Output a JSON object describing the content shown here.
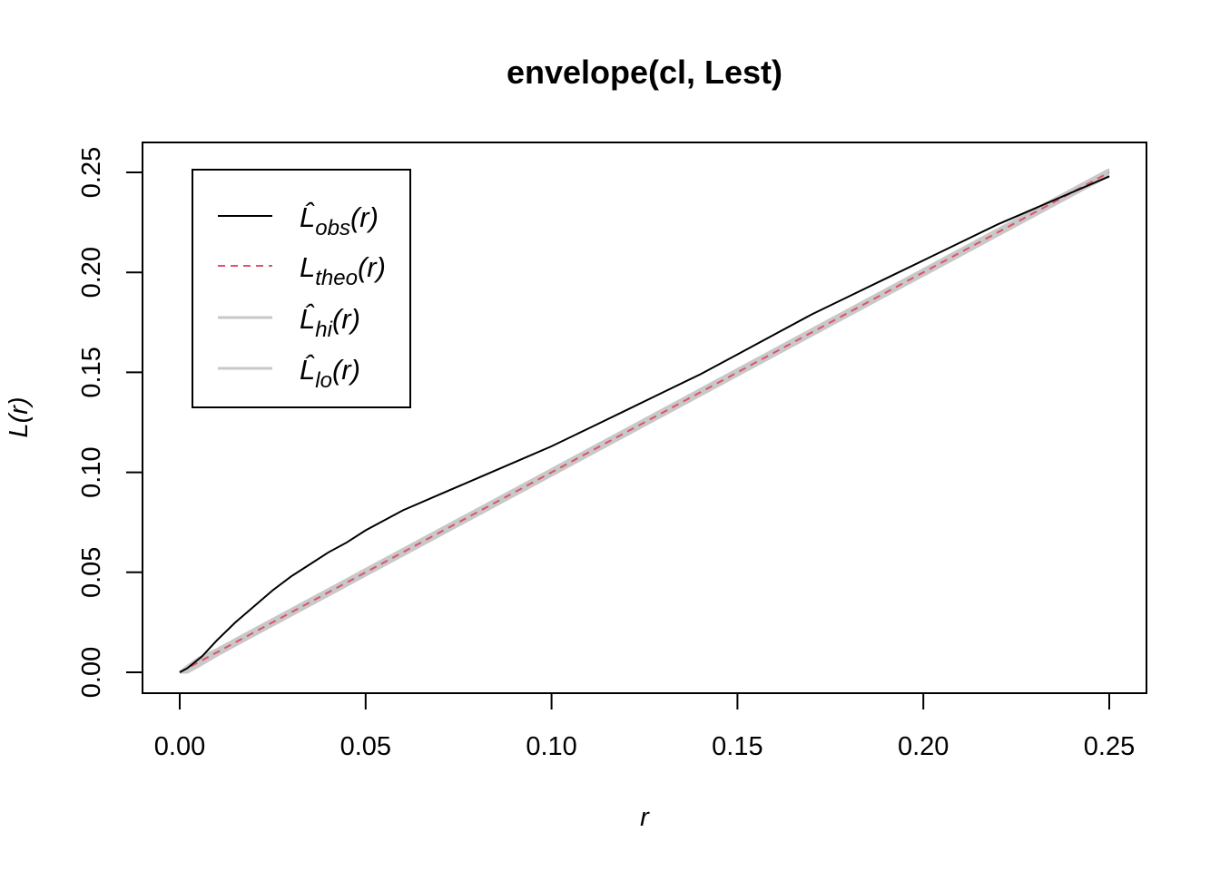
{
  "chart_data": {
    "type": "line",
    "title": "envelope(cl, Lest)",
    "xlabel": "r",
    "ylabel": "L(r)",
    "xlim": [
      0,
      0.25
    ],
    "ylim": [
      0,
      0.25
    ],
    "xticks": [
      "0.00",
      "0.05",
      "0.10",
      "0.15",
      "0.20",
      "0.25"
    ],
    "xtick_values": [
      0,
      0.05,
      0.1,
      0.15,
      0.2,
      0.25
    ],
    "yticks": [
      "0.00",
      "0.05",
      "0.10",
      "0.15",
      "0.20",
      "0.25"
    ],
    "ytick_values": [
      0,
      0.05,
      0.1,
      0.15,
      0.2,
      0.25
    ],
    "grid": false,
    "legend_position": "top-left",
    "series": [
      {
        "name": "L̂obs(r)",
        "legend": {
          "base": "L̂",
          "sub": "obs",
          "arg": "(r)"
        },
        "color": "#000000",
        "style": "solid",
        "x": [
          0,
          0.002,
          0.004,
          0.006,
          0.008,
          0.01,
          0.015,
          0.02,
          0.025,
          0.03,
          0.035,
          0.04,
          0.045,
          0.05,
          0.055,
          0.06,
          0.07,
          0.08,
          0.09,
          0.1,
          0.11,
          0.12,
          0.13,
          0.14,
          0.15,
          0.16,
          0.17,
          0.18,
          0.19,
          0.2,
          0.21,
          0.22,
          0.23,
          0.24,
          0.25
        ],
        "y": [
          0,
          0.002,
          0.005,
          0.008,
          0.012,
          0.016,
          0.025,
          0.033,
          0.041,
          0.048,
          0.054,
          0.06,
          0.065,
          0.071,
          0.076,
          0.081,
          0.089,
          0.097,
          0.105,
          0.113,
          0.122,
          0.131,
          0.14,
          0.149,
          0.159,
          0.169,
          0.179,
          0.188,
          0.197,
          0.206,
          0.215,
          0.224,
          0.232,
          0.24,
          0.248
        ]
      },
      {
        "name": "Ltheo(r)",
        "legend": {
          "base": "L",
          "sub": "theo",
          "arg": "(r)"
        },
        "color": "#df536b",
        "style": "dashed",
        "x": [
          0,
          0.25
        ],
        "y": [
          0,
          0.25
        ]
      },
      {
        "name": "L̂hi(r)",
        "legend": {
          "base": "L̂",
          "sub": "hi",
          "arg": "(r)"
        },
        "color": "#c8c8c8",
        "style": "solid",
        "x": [
          0,
          0.002,
          0.005,
          0.01,
          0.02,
          0.05,
          0.1,
          0.15,
          0.2,
          0.25
        ],
        "y": [
          0,
          0.003,
          0.007,
          0.0115,
          0.0215,
          0.0515,
          0.1015,
          0.1515,
          0.2015,
          0.2515
        ]
      },
      {
        "name": "L̂lo(r)",
        "legend": {
          "base": "L̂",
          "sub": "lo",
          "arg": "(r)"
        },
        "color": "#c8c8c8",
        "style": "solid",
        "x": [
          0,
          0.002,
          0.005,
          0.01,
          0.02,
          0.05,
          0.1,
          0.15,
          0.2,
          0.25
        ],
        "y": [
          0,
          0.0,
          0.003,
          0.0085,
          0.0185,
          0.0485,
          0.0985,
          0.1485,
          0.1985,
          0.2485
        ]
      }
    ]
  }
}
